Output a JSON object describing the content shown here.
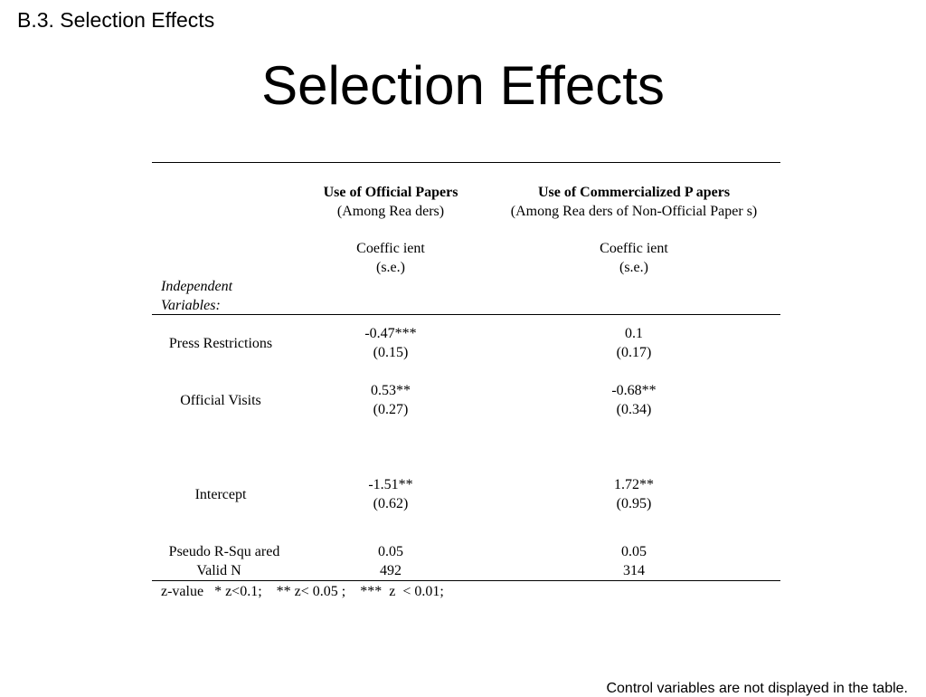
{
  "slide": {
    "section_label": "B.3. Selection Effects",
    "title": "Selection Effects",
    "footer_note": "Control variables are not displayed in the table."
  },
  "table": {
    "columns": [
      {
        "header": "Use of Official  Papers",
        "subheader": "(Among Rea ders)",
        "stat_label": "Coeffic ient",
        "stat_sublabel": "(s.e.)"
      },
      {
        "header": "Use of Commercialized P apers",
        "subheader": "(Among Rea ders of Non-Official Paper s)",
        "stat_label": "Coeffic ient",
        "stat_sublabel": "(s.e.)"
      }
    ],
    "row_header_line1": "Independent",
    "row_header_line2": "Variables:",
    "rows": [
      {
        "label": "Press Restrictions",
        "col1_coef": "-0.47***",
        "col1_se": "(0.15)",
        "col2_coef": "0.1",
        "col2_se": "(0.17)"
      },
      {
        "label": "Official Visits",
        "col1_coef": "0.53**",
        "col1_se": "(0.27)",
        "col2_coef": "-0.68**",
        "col2_se": "(0.34)"
      },
      {
        "label": "Intercept",
        "col1_coef": "-1.51**",
        "col1_se": "(0.62)",
        "col2_coef": "1.72**",
        "col2_se": "(0.95)"
      }
    ],
    "stats": [
      {
        "label": "Pseudo R-Squ ared",
        "col1": "0.05",
        "col2": "0.05"
      },
      {
        "label": "Valid  N",
        "col1": "492",
        "col2": "314"
      }
    ],
    "note": "z-value   * z<0.1;    ** z< 0.05 ;    ***  z  < 0.01;"
  }
}
